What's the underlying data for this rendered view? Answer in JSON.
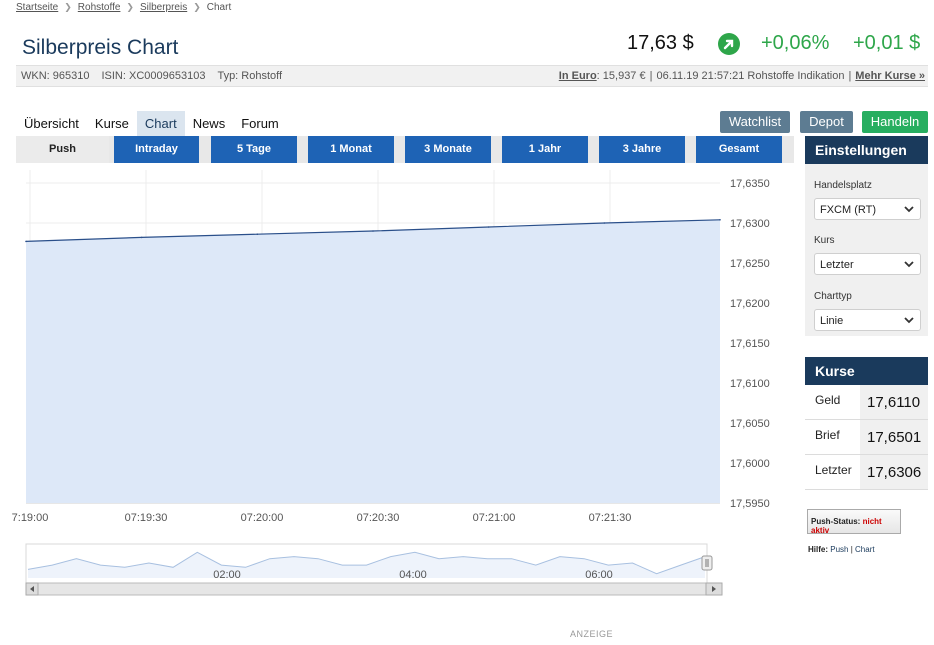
{
  "breadcrumb": {
    "items": [
      "Startseite",
      "Rohstoffe",
      "Silberpreis"
    ],
    "current": "Chart"
  },
  "header": {
    "title": "Silberpreis Chart",
    "price": "17,63 $",
    "change_pct": "+0,06%",
    "change_abs": "+0,01 $"
  },
  "info": {
    "wkn": "WKN: 965310",
    "isin": "ISIN: XC0009653103",
    "typ": "Typ: Rohstoff",
    "euro_label": "In Euro",
    "euro_value": ": 15,937 €",
    "datetime": "06.11.19 21:57:21 Rohstoffe Indikation",
    "more_link": "Mehr Kurse »"
  },
  "tabs": [
    "Übersicht",
    "Kurse",
    "Chart",
    "News",
    "Forum"
  ],
  "actions": {
    "watchlist": "Watchlist",
    "depot": "Depot",
    "handeln": "Handeln"
  },
  "ranges": [
    "Push",
    "Intraday",
    "5 Tage",
    "1 Monat",
    "3 Monate",
    "1 Jahr",
    "3 Jahre",
    "Gesamt"
  ],
  "colors": {
    "accent": "#1e63b5",
    "positive": "#2ea64a",
    "panel": "#1a3a5c",
    "area_fill": "#dde8f8",
    "line": "#2a4f8a"
  },
  "chart_data": {
    "type": "area",
    "x": [
      "07:19:00",
      "07:19:30",
      "07:20:00",
      "07:20:30",
      "07:21:00",
      "07:21:30",
      "07:21:50"
    ],
    "values": [
      17.6277,
      17.6282,
      17.6286,
      17.629,
      17.6295,
      17.63,
      17.6304
    ],
    "x_ticks": [
      "7:19:00",
      "07:19:30",
      "07:20:00",
      "07:20:30",
      "07:21:00",
      "07:21:30"
    ],
    "y_ticks": [
      "17,6350",
      "17,6300",
      "17,6250",
      "17,6200",
      "17,6150",
      "17,6100",
      "17,6050",
      "17,6000",
      "17,5950"
    ],
    "ylim": [
      17.595,
      17.635
    ],
    "grid": true,
    "navigator": {
      "x_ticks": [
        "02:00",
        "04:00",
        "06:00"
      ],
      "values": [
        17.58,
        17.6,
        17.63,
        17.6,
        17.59,
        17.61,
        17.59,
        17.66,
        17.6,
        17.59,
        17.63,
        17.64,
        17.63,
        17.6,
        17.6,
        17.64,
        17.66,
        17.63,
        17.64,
        17.63,
        17.63,
        17.6,
        17.64,
        17.63,
        17.6,
        17.61,
        17.56,
        17.6,
        17.64
      ]
    }
  },
  "settings": {
    "title": "Einstellungen",
    "handelsplatz_label": "Handelsplatz",
    "handelsplatz_value": "FXCM (RT)",
    "kurs_label": "Kurs",
    "kurs_value": "Letzter",
    "charttyp_label": "Charttyp",
    "charttyp_value": "Linie"
  },
  "kurse": {
    "title": "Kurse",
    "rows": [
      {
        "label": "Geld",
        "value": "17,6110"
      },
      {
        "label": "Brief",
        "value": "17,6501"
      },
      {
        "label": "Letzter",
        "value": "17,6306"
      }
    ]
  },
  "push": {
    "label": "Push-Status:",
    "status": "nicht aktiv"
  },
  "hilfe": {
    "label": "Hilfe:",
    "push": "Push",
    "sep": "|",
    "chart": "Chart"
  },
  "ad_label": "ANZEIGE"
}
